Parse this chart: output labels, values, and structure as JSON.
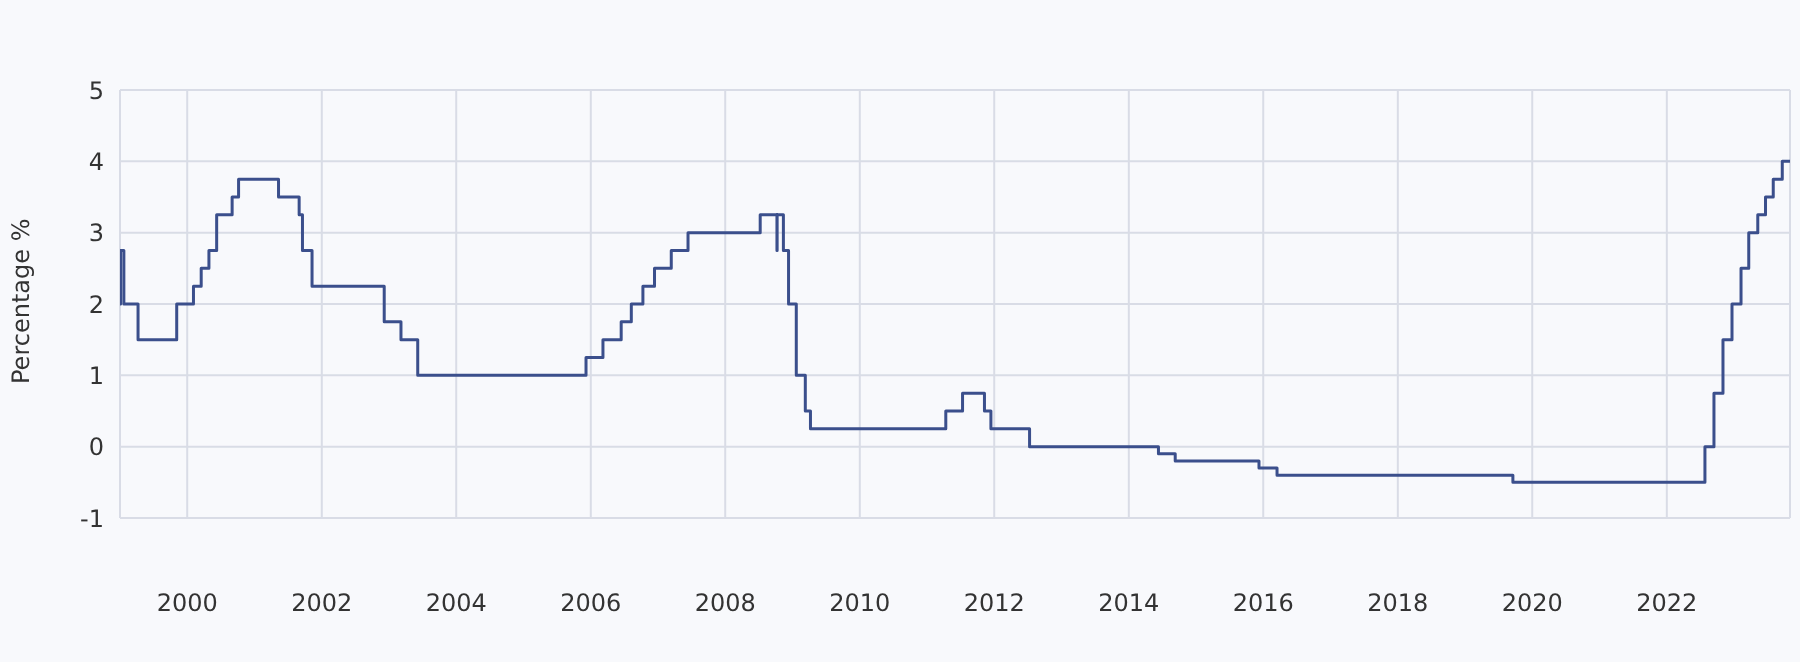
{
  "chart_data": {
    "type": "step",
    "ylabel": "Percentage %",
    "color": "#3b4f8c",
    "x": [
      "1999-01-01",
      "1999-01-04",
      "1999-01-22",
      "1999-04-09",
      "1999-11-05",
      "2000-02-04",
      "2000-03-17",
      "2000-04-28",
      "2000-06-09",
      "2000-09-01",
      "2000-10-06",
      "2001-05-11",
      "2001-08-31",
      "2001-09-18",
      "2001-11-09",
      "2002-12-06",
      "2003-03-07",
      "2003-06-06",
      "2005-12-06",
      "2006-03-08",
      "2006-06-15",
      "2006-08-09",
      "2006-10-11",
      "2006-12-13",
      "2007-03-14",
      "2007-06-13",
      "2008-07-09",
      "2008-10-08",
      "2008-10-09",
      "2008-11-12",
      "2008-12-10",
      "2009-01-21",
      "2009-03-11",
      "2009-04-08",
      "2011-04-13",
      "2011-07-13",
      "2011-11-09",
      "2011-12-14",
      "2012-07-11",
      "2014-06-11",
      "2014-09-10",
      "2015-12-09",
      "2016-03-16",
      "2019-09-18",
      "2022-07-27",
      "2022-09-14",
      "2022-11-02",
      "2022-12-21",
      "2023-02-08",
      "2023-03-22",
      "2023-05-10",
      "2023-06-21",
      "2023-08-02",
      "2023-09-20",
      "2023-11-01"
    ],
    "values": [
      2,
      2.75,
      2,
      1.5,
      2,
      2.25,
      2.5,
      2.75,
      3.25,
      3.5,
      3.75,
      3.5,
      3.25,
      2.75,
      2.25,
      1.75,
      1.5,
      1,
      1.25,
      1.5,
      1.75,
      2,
      2.25,
      2.5,
      2.75,
      3,
      3.25,
      2.75,
      3.25,
      2.75,
      2,
      1,
      0.5,
      0.25,
      0.5,
      0.75,
      0.5,
      0.25,
      0,
      -0.1,
      -0.2,
      -0.3,
      -0.4,
      -0.5,
      0,
      0.75,
      1.5,
      2,
      2.5,
      3,
      3.25,
      3.5,
      3.75,
      4,
      4
    ],
    "xlim": [
      "1999-01-01",
      "2023-11-01"
    ],
    "xticks": [
      "2000",
      "2002",
      "2004",
      "2006",
      "2008",
      "2010",
      "2012",
      "2014",
      "2016",
      "2018",
      "2020",
      "2022"
    ],
    "ylim": [
      -1,
      5
    ],
    "yticks": [
      -1,
      0,
      1,
      2,
      3,
      4,
      5
    ],
    "grid": true,
    "line_style": "solid",
    "marker": "none"
  }
}
